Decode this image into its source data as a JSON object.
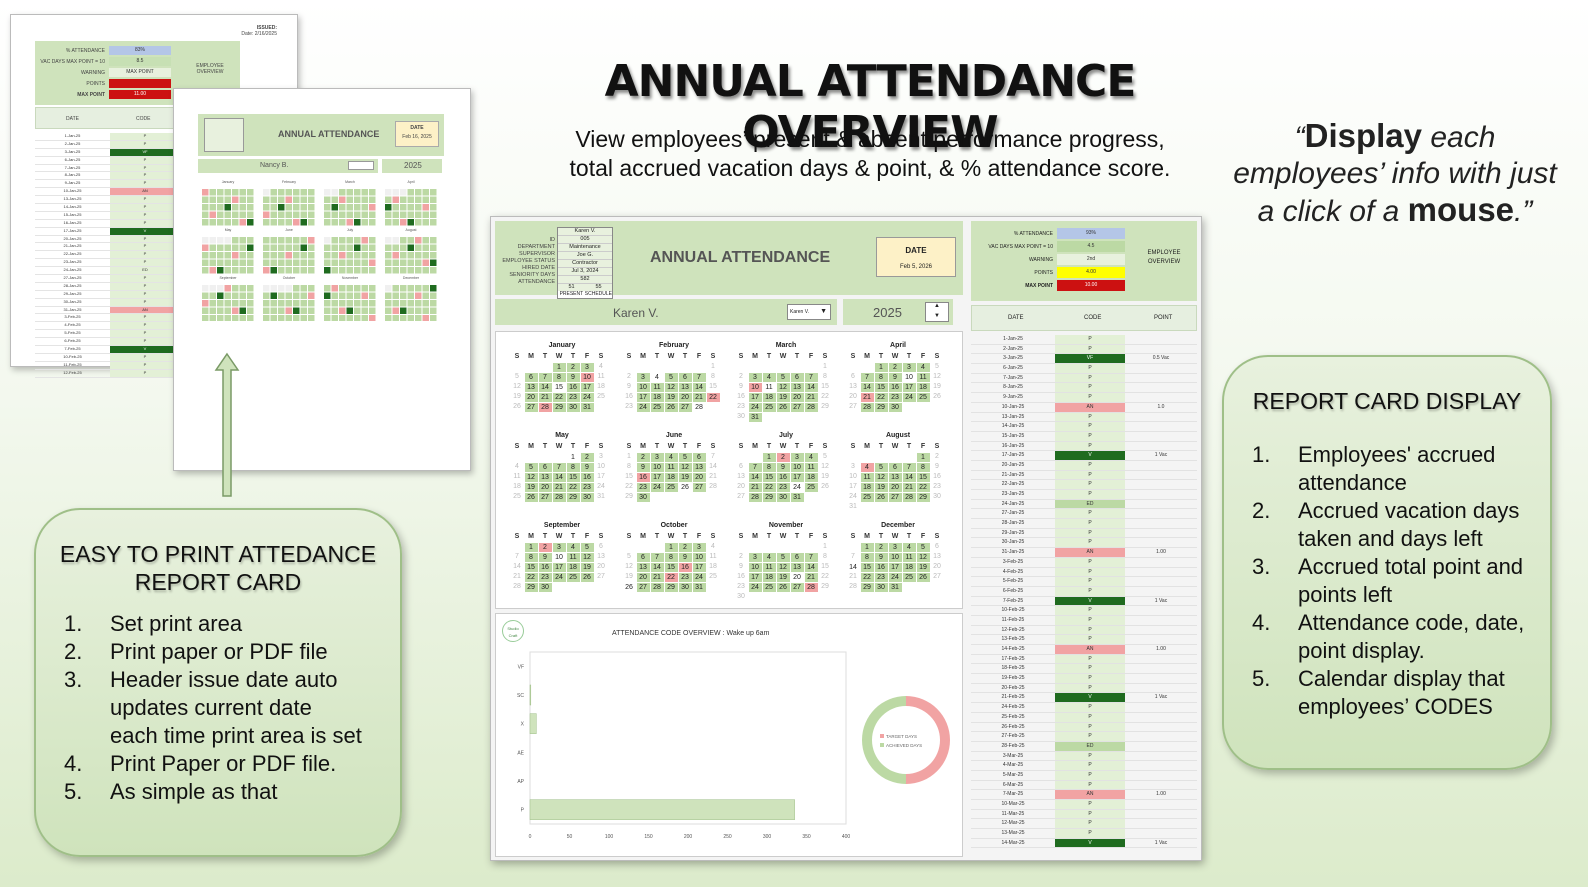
{
  "headline": "ANNUAL ATTENDANCE OVERVIEW",
  "subhead": {
    "line1": "View employees’ present & absent performance progress,",
    "line2": "total accrued vacation days & point, & % attendance score."
  },
  "quote": {
    "open": "“",
    "bold1": "Display",
    "mid": " each employees’ info with just a click of a ",
    "bold2": "mouse",
    "close": ".”"
  },
  "print_box": {
    "title_line1": "EASY TO PRINT ATTEDANCE",
    "title_line2": "REPORT CARD",
    "items": [
      {
        "num": "1.",
        "text": "Set print area"
      },
      {
        "num": "2.",
        "text": "Print paper or PDF file"
      },
      {
        "num": "3.",
        "text": "Header issue date auto updates current date each time print area is set"
      },
      {
        "num": "4.",
        "text": "Print Paper or PDF file."
      },
      {
        "num": "5.",
        "text": "As simple as that"
      }
    ]
  },
  "report_box": {
    "title": "REPORT CARD DISPLAY",
    "items": [
      {
        "num": "1.",
        "text": "Employees' accrued attendance"
      },
      {
        "num": "2.",
        "text": "Accrued vacation days taken and days left"
      },
      {
        "num": "3.",
        "text": "Accrued total point and points left"
      },
      {
        "num": "4.",
        "text": "Attendance code, date, point display."
      },
      {
        "num": "5.",
        "text": "Calendar display that employees’ CODES"
      }
    ]
  },
  "back_page": {
    "issued": "ISSUED:",
    "date": "Date: 2/16/2025",
    "rows": [
      "% ATTENDANCE",
      "VAC DAYS MAX POINT = 10",
      "WARNING",
      "POINTS",
      "MAX POINT"
    ],
    "values": [
      "83%",
      "8.5",
      "MAX POINT",
      "",
      "11.00"
    ],
    "overview": "EMPLOYEE OVERVIEW",
    "col_date": "DATE",
    "col_code": "CODE"
  },
  "front_page": {
    "title": "ANNUAL ATTENDANCE",
    "date_label": "DATE",
    "date_value": "Feb 16, 2025",
    "employee": "Nancy B.",
    "year": "2025"
  },
  "sheet": {
    "id_labels": [
      "ID",
      "DEPARTMENT",
      "SUPERVISOR",
      "EMPLOYEE STATUS",
      "HIRED DATE",
      "SENIORITY DAYS",
      "ATTENDANCE"
    ],
    "id_values": [
      "Karen V.",
      "005",
      "Maintenance",
      "Joe G.",
      "Contractor",
      "Jul 3, 2024",
      "582"
    ],
    "present_count": "51",
    "schedule_count": "55",
    "present_label": "PRESENT",
    "schedule_label": "SCHEDULE",
    "title": "ANNUAL ATTENDANCE",
    "date_label": "DATE",
    "date_value": "Feb 5, 2026",
    "employee": "Karen V.",
    "dropdown": "Karen V.",
    "year": "2025",
    "stats_labels": [
      "% ATTENDANCE",
      "VAC DAYS MAX POINT = 10",
      "WARNING",
      "POINTS",
      "MAX POINT"
    ],
    "stats_values": [
      "93%",
      "4.5",
      "2nd",
      "4.00",
      "10.00"
    ],
    "overview": "EMPLOYEE OVERVIEW",
    "col_date": "DATE",
    "col_code": "CODE",
    "col_point": "POINT",
    "weekday_letters": [
      "S",
      "M",
      "T",
      "W",
      "T",
      "F",
      "S"
    ],
    "months": [
      "January",
      "February",
      "March",
      "April",
      "May",
      "June",
      "July",
      "August",
      "September",
      "October",
      "November",
      "December"
    ],
    "chart_title": "ATTENDANCE CODE OVERVIEW : Wake up 6am",
    "logo": "Studio Craft",
    "donut_legend": [
      "TARGET DAYS",
      "ACHIEVED DAYS"
    ]
  },
  "table_rows": [
    {
      "date": "1-Jan-25",
      "code": "P",
      "point": ""
    },
    {
      "date": "2-Jan-25",
      "code": "P",
      "point": ""
    },
    {
      "date": "3-Jan-25",
      "code": "VF",
      "point": "0.5 Vac"
    },
    {
      "date": "6-Jan-25",
      "code": "P",
      "point": ""
    },
    {
      "date": "7-Jan-25",
      "code": "P",
      "point": ""
    },
    {
      "date": "8-Jan-25",
      "code": "P",
      "point": ""
    },
    {
      "date": "9-Jan-25",
      "code": "P",
      "point": ""
    },
    {
      "date": "10-Jan-25",
      "code": "AN",
      "point": "1.0"
    },
    {
      "date": "13-Jan-25",
      "code": "P",
      "point": ""
    },
    {
      "date": "14-Jan-25",
      "code": "P",
      "point": ""
    },
    {
      "date": "15-Jan-25",
      "code": "P",
      "point": ""
    },
    {
      "date": "16-Jan-25",
      "code": "P",
      "point": ""
    },
    {
      "date": "17-Jan-25",
      "code": "V",
      "point": "1 Vac"
    },
    {
      "date": "20-Jan-25",
      "code": "P",
      "point": ""
    },
    {
      "date": "21-Jan-25",
      "code": "P",
      "point": ""
    },
    {
      "date": "22-Jan-25",
      "code": "P",
      "point": ""
    },
    {
      "date": "23-Jan-25",
      "code": "P",
      "point": ""
    },
    {
      "date": "24-Jan-25",
      "code": "ED",
      "point": ""
    },
    {
      "date": "27-Jan-25",
      "code": "P",
      "point": ""
    },
    {
      "date": "28-Jan-25",
      "code": "P",
      "point": ""
    },
    {
      "date": "29-Jan-25",
      "code": "P",
      "point": ""
    },
    {
      "date": "30-Jan-25",
      "code": "P",
      "point": ""
    },
    {
      "date": "31-Jan-25",
      "code": "AN",
      "point": "1.00"
    },
    {
      "date": "3-Feb-25",
      "code": "P",
      "point": ""
    },
    {
      "date": "4-Feb-25",
      "code": "P",
      "point": ""
    },
    {
      "date": "5-Feb-25",
      "code": "P",
      "point": ""
    },
    {
      "date": "6-Feb-25",
      "code": "P",
      "point": ""
    },
    {
      "date": "7-Feb-25",
      "code": "V",
      "point": "1 Vac"
    },
    {
      "date": "10-Feb-25",
      "code": "P",
      "point": ""
    },
    {
      "date": "11-Feb-25",
      "code": "P",
      "point": ""
    },
    {
      "date": "12-Feb-25",
      "code": "P",
      "point": ""
    },
    {
      "date": "13-Feb-25",
      "code": "P",
      "point": ""
    },
    {
      "date": "14-Feb-25",
      "code": "AN",
      "point": "1.00"
    },
    {
      "date": "17-Feb-25",
      "code": "P",
      "point": ""
    },
    {
      "date": "18-Feb-25",
      "code": "P",
      "point": ""
    },
    {
      "date": "19-Feb-25",
      "code": "P",
      "point": ""
    },
    {
      "date": "20-Feb-25",
      "code": "P",
      "point": ""
    },
    {
      "date": "21-Feb-25",
      "code": "V",
      "point": "1 Vac"
    },
    {
      "date": "24-Feb-25",
      "code": "P",
      "point": ""
    },
    {
      "date": "25-Feb-25",
      "code": "P",
      "point": ""
    },
    {
      "date": "26-Feb-25",
      "code": "P",
      "point": ""
    },
    {
      "date": "27-Feb-25",
      "code": "P",
      "point": ""
    },
    {
      "date": "28-Feb-25",
      "code": "ED",
      "point": ""
    },
    {
      "date": "3-Mar-25",
      "code": "P",
      "point": ""
    },
    {
      "date": "4-Mar-25",
      "code": "P",
      "point": ""
    },
    {
      "date": "5-Mar-25",
      "code": "P",
      "point": ""
    },
    {
      "date": "6-Mar-25",
      "code": "P",
      "point": ""
    },
    {
      "date": "7-Mar-25",
      "code": "AN",
      "point": "1.00"
    },
    {
      "date": "10-Mar-25",
      "code": "P",
      "point": ""
    },
    {
      "date": "11-Mar-25",
      "code": "P",
      "point": ""
    },
    {
      "date": "12-Mar-25",
      "code": "P",
      "point": ""
    },
    {
      "date": "13-Mar-25",
      "code": "P",
      "point": ""
    },
    {
      "date": "14-Mar-25",
      "code": "V",
      "point": "1 Vac"
    }
  ],
  "chart_data": {
    "type": "bar",
    "orientation": "horizontal",
    "title": "ATTENDANCE CODE OVERVIEW : Wake up 6am",
    "categories": [
      "VF",
      "SC",
      "X",
      "AE",
      "AP",
      "P"
    ],
    "values": [
      0,
      1,
      8,
      0,
      0,
      335
    ],
    "xlim": [
      0,
      400
    ],
    "xticks": [
      0,
      50,
      100,
      150,
      200,
      250,
      300,
      350,
      400
    ]
  },
  "donut_data": {
    "type": "pie",
    "labels": [
      "TARGET DAYS",
      "ACHIEVED DAYS"
    ],
    "values": [
      50,
      50
    ]
  },
  "colors": {
    "green_header": "#cfe3bc",
    "present": "#bcd9a4",
    "absent": "#f1a3a3",
    "vacation": "#1f6b1f",
    "yellow": "#ffff00",
    "red": "#cc1111",
    "blue": "#b4c6e7"
  }
}
